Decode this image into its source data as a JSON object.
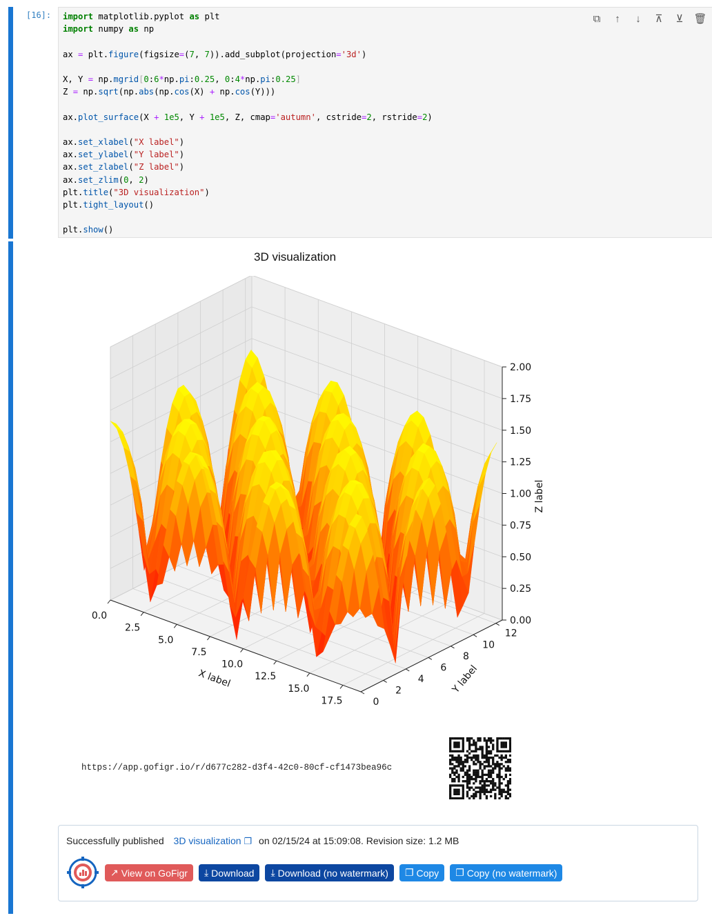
{
  "cell": {
    "prompt": "[16]:",
    "code": [
      [
        [
          "kw",
          "import"
        ],
        [
          "t",
          " matplotlib.pyplot "
        ],
        [
          "kw",
          "as"
        ],
        [
          "t",
          " plt"
        ]
      ],
      [
        [
          "kw",
          "import"
        ],
        [
          "t",
          " numpy "
        ],
        [
          "kw",
          "as"
        ],
        [
          "t",
          " np"
        ]
      ],
      [],
      [
        [
          "t",
          "ax "
        ],
        [
          "op",
          "="
        ],
        [
          "t",
          " plt."
        ],
        [
          "fn",
          "figure"
        ],
        [
          "t",
          "(figsize"
        ],
        [
          "op",
          "="
        ],
        [
          "t",
          "("
        ],
        [
          "nu",
          "7"
        ],
        [
          "t",
          ", "
        ],
        [
          "nu",
          "7"
        ],
        [
          "t",
          ")).add_subplot(projection"
        ],
        [
          "op",
          "="
        ],
        [
          "st",
          "'3d'"
        ],
        [
          "t",
          ")"
        ]
      ],
      [],
      [
        [
          "t",
          "X, Y "
        ],
        [
          "op",
          "="
        ],
        [
          "t",
          " np."
        ],
        [
          "fn",
          "mgrid"
        ],
        [
          "dim",
          "["
        ],
        [
          "nu",
          "0"
        ],
        [
          "t",
          ":"
        ],
        [
          "nu",
          "6"
        ],
        [
          "op",
          "*"
        ],
        [
          "t",
          "np."
        ],
        [
          "fn",
          "pi"
        ],
        [
          "t",
          ":"
        ],
        [
          "nu",
          "0.25"
        ],
        [
          "t",
          ", "
        ],
        [
          "nu",
          "0"
        ],
        [
          "t",
          ":"
        ],
        [
          "nu",
          "4"
        ],
        [
          "op",
          "*"
        ],
        [
          "t",
          "np."
        ],
        [
          "fn",
          "pi"
        ],
        [
          "t",
          ":"
        ],
        [
          "nu",
          "0.25"
        ],
        [
          "dim",
          "]"
        ]
      ],
      [
        [
          "t",
          "Z "
        ],
        [
          "op",
          "="
        ],
        [
          "t",
          " np."
        ],
        [
          "fn",
          "sqrt"
        ],
        [
          "t",
          "(np."
        ],
        [
          "fn",
          "abs"
        ],
        [
          "t",
          "(np."
        ],
        [
          "fn",
          "cos"
        ],
        [
          "t",
          "(X) "
        ],
        [
          "op",
          "+"
        ],
        [
          "t",
          " np."
        ],
        [
          "fn",
          "cos"
        ],
        [
          "t",
          "(Y)))"
        ]
      ],
      [],
      [
        [
          "t",
          "ax."
        ],
        [
          "fn",
          "plot_surface"
        ],
        [
          "t",
          "(X "
        ],
        [
          "op",
          "+"
        ],
        [
          "t",
          " "
        ],
        [
          "nu",
          "1e5"
        ],
        [
          "t",
          ", Y "
        ],
        [
          "op",
          "+"
        ],
        [
          "t",
          " "
        ],
        [
          "nu",
          "1e5"
        ],
        [
          "t",
          ", Z, cmap"
        ],
        [
          "op",
          "="
        ],
        [
          "st",
          "'autumn'"
        ],
        [
          "t",
          ", cstride"
        ],
        [
          "op",
          "="
        ],
        [
          "nu",
          "2"
        ],
        [
          "t",
          ", rstride"
        ],
        [
          "op",
          "="
        ],
        [
          "nu",
          "2"
        ],
        [
          "t",
          ")"
        ]
      ],
      [],
      [
        [
          "t",
          "ax."
        ],
        [
          "fn",
          "set_xlabel"
        ],
        [
          "t",
          "("
        ],
        [
          "st",
          "\"X label\""
        ],
        [
          "t",
          ")"
        ]
      ],
      [
        [
          "t",
          "ax."
        ],
        [
          "fn",
          "set_ylabel"
        ],
        [
          "t",
          "("
        ],
        [
          "st",
          "\"Y label\""
        ],
        [
          "t",
          ")"
        ]
      ],
      [
        [
          "t",
          "ax."
        ],
        [
          "fn",
          "set_zlabel"
        ],
        [
          "t",
          "("
        ],
        [
          "st",
          "\"Z label\""
        ],
        [
          "t",
          ")"
        ]
      ],
      [
        [
          "t",
          "ax."
        ],
        [
          "fn",
          "set_zlim"
        ],
        [
          "t",
          "("
        ],
        [
          "nu",
          "0"
        ],
        [
          "t",
          ", "
        ],
        [
          "nu",
          "2"
        ],
        [
          "t",
          ")"
        ]
      ],
      [
        [
          "t",
          "plt."
        ],
        [
          "fn",
          "title"
        ],
        [
          "t",
          "("
        ],
        [
          "st",
          "\"3D visualization\""
        ],
        [
          "t",
          ")"
        ]
      ],
      [
        [
          "t",
          "plt."
        ],
        [
          "fn",
          "tight_layout"
        ],
        [
          "t",
          "()"
        ]
      ],
      [],
      [
        [
          "t",
          "plt."
        ],
        [
          "fn",
          "show"
        ],
        [
          "t",
          "()"
        ]
      ]
    ]
  },
  "toolbar": [
    {
      "name": "duplicate-cell-icon",
      "glyph": "⧉"
    },
    {
      "name": "move-up-icon",
      "glyph": "↑"
    },
    {
      "name": "move-down-icon",
      "glyph": "↓"
    },
    {
      "name": "insert-above-icon",
      "glyph": "⊼"
    },
    {
      "name": "insert-below-icon",
      "glyph": "⊻"
    },
    {
      "name": "delete-cell-icon",
      "glyph": "🗑"
    }
  ],
  "chart_data": {
    "type": "surface",
    "title": "3D visualization",
    "xlabel": "X label",
    "ylabel": "Y label",
    "zlabel": "Z label",
    "xlim": [
      0,
      18.85
    ],
    "ylim": [
      0,
      12.57
    ],
    "zlim": [
      0,
      2
    ],
    "x_ticks": [
      "0.0",
      "2.5",
      "5.0",
      "7.5",
      "10.0",
      "12.5",
      "15.0",
      "17.5"
    ],
    "y_ticks": [
      "0",
      "2",
      "4",
      "6",
      "8",
      "10",
      "12"
    ],
    "z_ticks": [
      "0.00",
      "0.25",
      "0.50",
      "0.75",
      "1.00",
      "1.25",
      "1.50",
      "1.75",
      "2.00"
    ],
    "x_tick_values": [
      0,
      2.5,
      5,
      7.5,
      10,
      12.5,
      15,
      17.5
    ],
    "y_tick_values": [
      0,
      2,
      4,
      6,
      8,
      10,
      12
    ],
    "z_tick_values": [
      0,
      0.25,
      0.5,
      0.75,
      1,
      1.25,
      1.5,
      1.75,
      2
    ],
    "function": "sqrt(|cos(X) + cos(Y)|)",
    "x_range": [
      0,
      18.85,
      0.25
    ],
    "y_range": [
      0,
      12.57,
      0.25
    ],
    "colormap": "autumn",
    "color_low": "#ff0000",
    "color_high": "#ffff00",
    "grid": true
  },
  "gofigr": {
    "url": "https://app.gofigr.io/r/d677c282-d3f4-42c0-80cf-cf1473bea96c",
    "status_prefix": "Successfully published",
    "figure_name": "3D visualization",
    "status_suffix": "on 02/15/24 at 15:09:08. Revision size: 1.2 MB",
    "buttons": {
      "view": "View on GoFigr",
      "download": "Download",
      "download_nowm": "Download (no watermark)",
      "copy": "Copy",
      "copy_nowm": "Copy (no watermark)"
    }
  }
}
